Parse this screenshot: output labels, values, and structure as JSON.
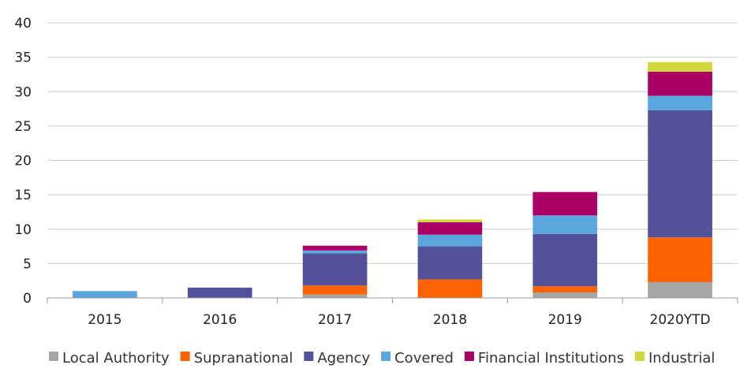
{
  "chart_data": {
    "type": "bar",
    "stacked": true,
    "title": "",
    "xlabel": "",
    "ylabel": "",
    "categories": [
      "2015",
      "2016",
      "2017",
      "2018",
      "2019",
      "2020YTD"
    ],
    "ylim": [
      0,
      40
    ],
    "yticks": [
      0,
      5,
      10,
      15,
      20,
      25,
      30,
      35,
      40
    ],
    "grid": true,
    "legend": "bottom",
    "series": [
      {
        "name": "Local Authority",
        "color": "#a6a6a6",
        "values": [
          0,
          0,
          0.5,
          0,
          0.8,
          2.3
        ]
      },
      {
        "name": "Supranational",
        "color": "#ff6200",
        "values": [
          0,
          0,
          1.3,
          2.7,
          0.9,
          6.5
        ]
      },
      {
        "name": "Agency",
        "color": "#525199",
        "values": [
          0,
          1.5,
          4.7,
          4.8,
          7.6,
          18.5
        ]
      },
      {
        "name": "Covered",
        "color": "#5aa6df",
        "values": [
          1.0,
          0,
          0.4,
          1.7,
          2.7,
          2.1
        ]
      },
      {
        "name": "Financial Institutions",
        "color": "#ab0066",
        "values": [
          0,
          0,
          0.7,
          1.8,
          3.4,
          3.5
        ]
      },
      {
        "name": "Industrial",
        "color": "#d0d93c",
        "values": [
          0,
          0,
          0,
          0.4,
          0,
          1.4
        ]
      }
    ]
  }
}
